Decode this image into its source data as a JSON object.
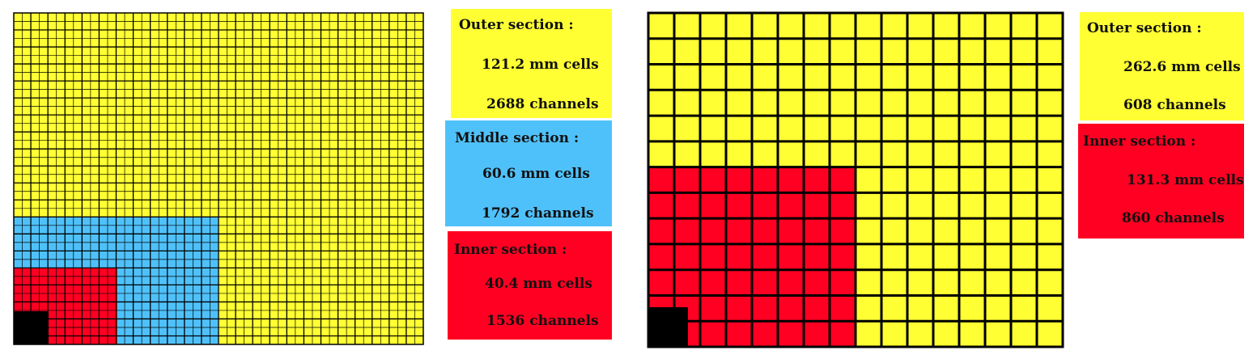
{
  "colors": {
    "outer": "#FFFF33",
    "middle": "#4FC1FA",
    "inner": "#FF0022",
    "beam_hole": "#000000",
    "grid_line": "#000000"
  },
  "left_panel": {
    "sections": {
      "outer": {
        "title": "Outer section :",
        "cell_size": "121.2 mm  cells",
        "channels": "2688  channels"
      },
      "middle": {
        "title": "Middle section :",
        "cell_size": "60.6 mm  cells",
        "channels": "1792 channels"
      },
      "inner": {
        "title": "Inner section :",
        "cell_size": "40.4 mm  cells",
        "channels": "1536 channels"
      }
    }
  },
  "right_panel": {
    "sections": {
      "outer": {
        "title": "Outer section :",
        "cell_size": "262.6 mm  cells",
        "channels": "608  channels"
      },
      "inner": {
        "title": "Inner section :",
        "cell_size": "131.3 mm  cells",
        "channels": "860  channels"
      }
    }
  }
}
